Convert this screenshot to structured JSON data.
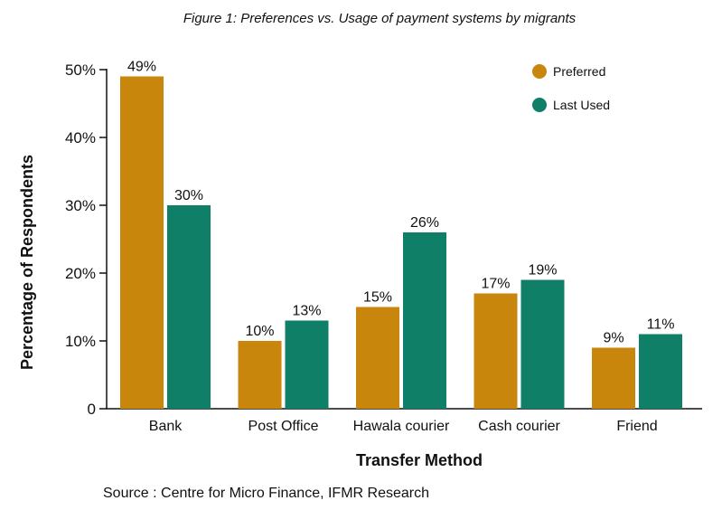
{
  "chart_data": {
    "type": "bar",
    "title": "Figure 1: Preferences vs. Usage of payment systems by migrants",
    "xlabel": "Transfer Method",
    "ylabel": "Percentage of Respondents",
    "categories": [
      "Bank",
      "Post Office",
      "Hawala courier",
      "Cash courier",
      "Friend"
    ],
    "series": [
      {
        "name": "Preferred",
        "values": [
          49,
          10,
          15,
          17,
          9
        ],
        "labels": [
          "49%",
          "10%",
          "15%",
          "17%",
          "9%"
        ]
      },
      {
        "name": "Last Used",
        "values": [
          30,
          13,
          26,
          19,
          11
        ],
        "labels": [
          "30%",
          "13%",
          "26%",
          "19%",
          "11%"
        ]
      }
    ],
    "ylim": [
      0,
      50
    ],
    "yticks": [
      0,
      10,
      20,
      30,
      40,
      50
    ],
    "ytick_labels": [
      "0",
      "10%",
      "20%",
      "30%",
      "40%",
      "50%"
    ],
    "grid": false,
    "legend_position": "top-right",
    "colors": {
      "Preferred": "#C8860D",
      "Last Used": "#0F7F68"
    },
    "source": "Source : Centre for Micro Finance, IFMR Research"
  }
}
